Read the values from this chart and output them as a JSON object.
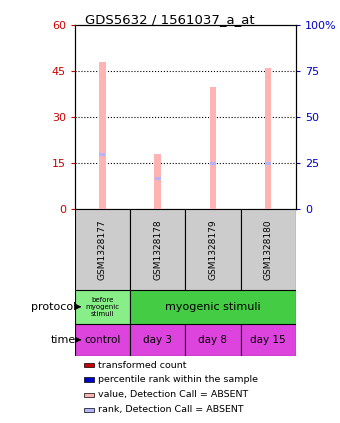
{
  "title": "GDS5632 / 1561037_a_at",
  "samples": [
    "GSM1328177",
    "GSM1328178",
    "GSM1328179",
    "GSM1328180"
  ],
  "bar_values_absent": [
    48,
    18,
    40,
    46
  ],
  "rank_values_absent": [
    29,
    16,
    24,
    24
  ],
  "bar_colors_absent": "#ffb3b3",
  "rank_colors_absent": "#b3b3ff",
  "ylim_left": [
    0,
    60
  ],
  "ylim_right": [
    0,
    100
  ],
  "yticks_left": [
    0,
    15,
    30,
    45,
    60
  ],
  "yticks_right": [
    0,
    25,
    50,
    75,
    100
  ],
  "ytick_labels_left": [
    "0",
    "15",
    "30",
    "45",
    "60"
  ],
  "ytick_labels_right": [
    "0",
    "25",
    "50",
    "75",
    "100%"
  ],
  "left_axis_color": "#cc0000",
  "right_axis_color": "#0000cc",
  "time_labels": [
    "control",
    "day 3",
    "day 8",
    "day 15"
  ],
  "time_color": "#dd44dd",
  "sample_bg_color": "#cccccc",
  "before_color": "#88ee88",
  "myogenic_color": "#44cc44",
  "legend_items": [
    {
      "color": "#cc0000",
      "label": "transformed count"
    },
    {
      "color": "#0000cc",
      "label": "percentile rank within the sample"
    },
    {
      "color": "#ffb3b3",
      "label": "value, Detection Call = ABSENT"
    },
    {
      "color": "#b3b3ff",
      "label": "rank, Detection Call = ABSENT"
    }
  ]
}
